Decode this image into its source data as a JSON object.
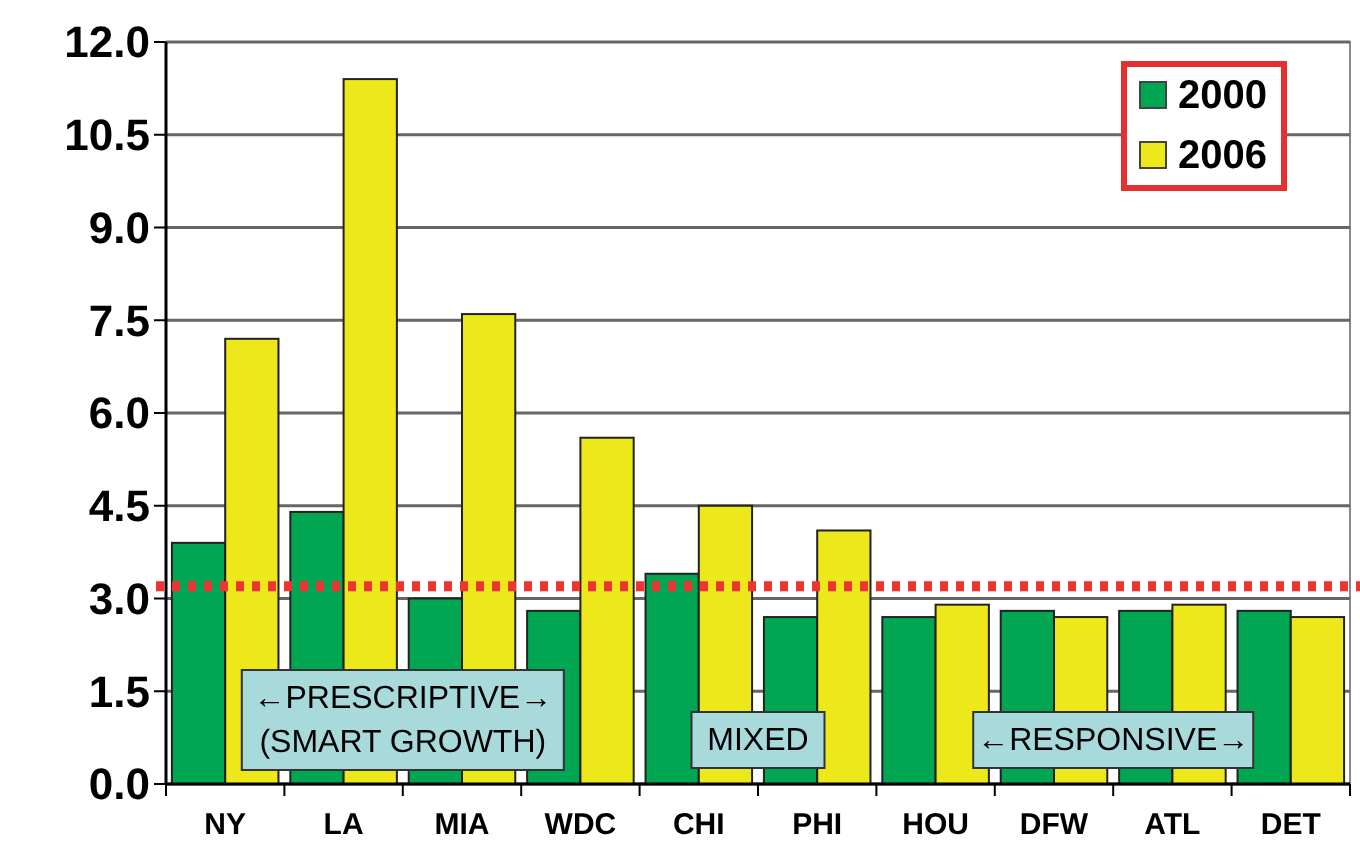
{
  "chart_data": {
    "type": "bar",
    "categories": [
      "NY",
      "LA",
      "MIA",
      "WDC",
      "CHI",
      "PHI",
      "HOU",
      "DFW",
      "ATL",
      "DET"
    ],
    "series": [
      {
        "name": "2000",
        "color": "#00a651",
        "values": [
          3.9,
          4.4,
          3.0,
          2.8,
          3.4,
          2.7,
          2.7,
          2.8,
          2.8,
          2.8
        ]
      },
      {
        "name": "2006",
        "color": "#ece81a",
        "values": [
          7.2,
          11.4,
          7.6,
          5.6,
          4.5,
          4.1,
          2.9,
          2.7,
          2.9,
          2.7
        ]
      }
    ],
    "ylim": [
      0,
      12
    ],
    "yticks": [
      {
        "value": 0,
        "label": "0.0"
      },
      {
        "value": 1.5,
        "label": "1.5"
      },
      {
        "value": 3,
        "label": "3.0"
      },
      {
        "value": 4.5,
        "label": "4.5"
      },
      {
        "value": 6,
        "label": "6.0"
      },
      {
        "value": 7.5,
        "label": "7.5"
      },
      {
        "value": 9,
        "label": "9.0"
      },
      {
        "value": 10.5,
        "label": "10.5"
      },
      {
        "value": 12,
        "label": "12.0"
      }
    ],
    "grid": "y",
    "legend": "top right",
    "ref_lines": [
      {
        "axis": "y",
        "value": 3.2,
        "color": "#ee3333",
        "line_style": "dotted"
      }
    ],
    "annotations": [
      "←PRESCRIPTIVE→\n(SMART GROWTH)",
      "MIXED",
      "←RESPONSIVE→"
    ]
  }
}
